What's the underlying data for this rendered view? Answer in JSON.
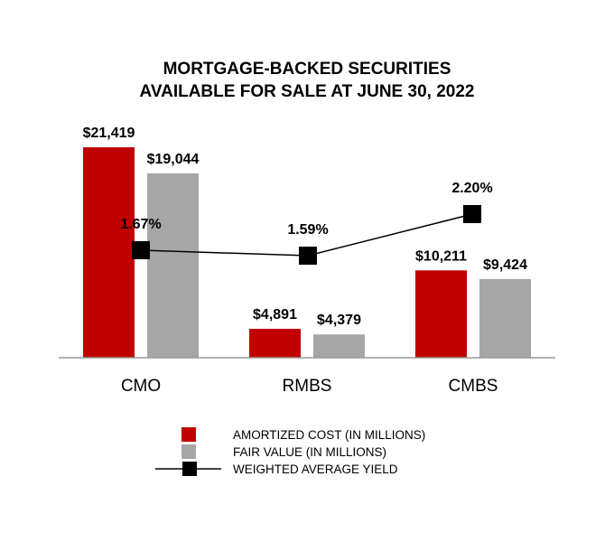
{
  "chart_data": {
    "type": "bar",
    "title": [
      "MORTGAGE-BACKED SECURITIES",
      "AVAILABLE FOR SALE AT JUNE 30, 2022"
    ],
    "categories": [
      "CMO",
      "RMBS",
      "CMBS"
    ],
    "series": [
      {
        "name": "AMORTIZED COST (IN MILLIONS)",
        "type": "bar",
        "color": "#C00000",
        "values": [
          21419,
          4891,
          10211
        ],
        "labels": [
          "$21,419",
          "$4,891",
          "$10,211"
        ]
      },
      {
        "name": "FAIR VALUE (IN MILLIONS)",
        "type": "bar",
        "color": "#A6A6A6",
        "values": [
          19044,
          4379,
          9424
        ],
        "labels": [
          "$19,044",
          "$4,379",
          "$9,424"
        ]
      },
      {
        "name": "WEIGHTED AVERAGE YIELD",
        "type": "line",
        "color": "#000000",
        "values": [
          1.67,
          1.59,
          2.2
        ],
        "labels": [
          "1.67%",
          "1.59%",
          "2.20%"
        ]
      }
    ],
    "grid": false,
    "legend": "bottom"
  }
}
